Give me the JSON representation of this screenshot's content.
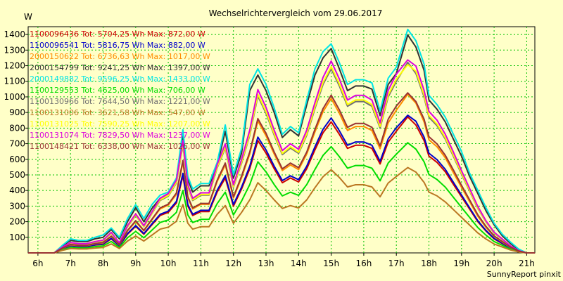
{
  "chart_data": {
    "type": "line",
    "title": "Wechselrichtervergleich vom 29.06.2017",
    "ylabel": "W",
    "xlabel": "",
    "footer": "SunnyReport pinxit",
    "ylim": [
      0,
      1450
    ],
    "xlim": [
      5.7,
      21.25
    ],
    "grid": true,
    "legend_position": "top-left",
    "y_ticks": [
      100,
      200,
      300,
      400,
      500,
      600,
      700,
      800,
      900,
      1000,
      1100,
      1200,
      1300,
      1400
    ],
    "x_ticks": [
      {
        "value": 6,
        "label": "6h"
      },
      {
        "value": 7,
        "label": "7h"
      },
      {
        "value": 8,
        "label": "8h"
      },
      {
        "value": 9,
        "label": "9h"
      },
      {
        "value": 10,
        "label": "10h"
      },
      {
        "value": 11,
        "label": "11h"
      },
      {
        "value": 12,
        "label": "12h"
      },
      {
        "value": 13,
        "label": "13h"
      },
      {
        "value": 14,
        "label": "14h"
      },
      {
        "value": 15,
        "label": "15h"
      },
      {
        "value": 16,
        "label": "16h"
      },
      {
        "value": 17,
        "label": "17h"
      },
      {
        "value": 18,
        "label": "18h"
      },
      {
        "value": 19,
        "label": "19h"
      },
      {
        "value": 20,
        "label": "20h"
      },
      {
        "value": 21,
        "label": "21h"
      }
    ],
    "x": [
      5.7,
      6.0,
      6.25,
      6.5,
      6.75,
      7.0,
      7.25,
      7.5,
      7.75,
      8.0,
      8.25,
      8.5,
      8.75,
      9.0,
      9.25,
      9.5,
      9.75,
      10.0,
      10.25,
      10.45,
      10.6,
      10.75,
      11.0,
      11.25,
      11.5,
      11.75,
      12.0,
      12.25,
      12.5,
      12.75,
      13.0,
      13.25,
      13.5,
      13.75,
      14.0,
      14.25,
      14.5,
      14.75,
      15.0,
      15.25,
      15.5,
      15.75,
      16.0,
      16.25,
      16.5,
      16.75,
      17.0,
      17.35,
      17.6,
      17.85,
      18.0,
      18.25,
      18.5,
      18.75,
      19.0,
      19.25,
      19.5,
      19.75,
      20.0,
      20.25,
      20.5,
      20.75,
      21.0,
      21.25
    ],
    "series": [
      {
        "name": "1100096436",
        "color": "#cc0000",
        "legend": "1100096436 Tot: 5704,25 Wh Max: 872,00 W",
        "values": [
          0,
          0,
          0,
          0,
          25,
          45,
          40,
          40,
          50,
          55,
          90,
          45,
          120,
          170,
          120,
          180,
          240,
          260,
          320,
          495,
          300,
          240,
          265,
          265,
          390,
          480,
          300,
          410,
          540,
          720,
          640,
          540,
          450,
          480,
          455,
          540,
          660,
          770,
          840,
          760,
          670,
          690,
          690,
          670,
          570,
          710,
          780,
          872,
          820,
          720,
          620,
          580,
          520,
          440,
          360,
          280,
          200,
          140,
          90,
          60,
          30,
          10,
          0,
          0
        ]
      },
      {
        "name": "1100096541",
        "color": "#0000cc",
        "legend": "1100096541 Tot: 5816,75 Wh Max: 882,00 W",
        "values": [
          0,
          0,
          0,
          0,
          27,
          47,
          42,
          42,
          52,
          58,
          93,
          47,
          124,
          175,
          124,
          186,
          247,
          268,
          330,
          510,
          310,
          248,
          273,
          273,
          402,
          495,
          310,
          422,
          556,
          742,
          660,
          556,
          464,
          494,
          469,
          556,
          680,
          793,
          865,
          783,
          690,
          711,
          711,
          690,
          587,
          731,
          803,
          882,
          844,
          742,
          639,
          597,
          536,
          453,
          371,
          288,
          206,
          144,
          93,
          62,
          31,
          10,
          0,
          0
        ]
      },
      {
        "name": "2000150622",
        "color": "#ff8c00",
        "legend": "2000150622 Tot: 6736,63 Wh Max: 1017,00 W",
        "values": [
          0,
          0,
          0,
          0,
          29,
          52,
          47,
          47,
          58,
          64,
          106,
          52,
          141,
          200,
          141,
          212,
          282,
          306,
          376,
          580,
          352,
          282,
          311,
          311,
          458,
          564,
          352,
          482,
          634,
          846,
          750,
          634,
          528,
          564,
          534,
          634,
          775,
          905,
          990,
          895,
          785,
          810,
          810,
          785,
          668,
          833,
          915,
          1017,
          960,
          840,
          725,
          680,
          610,
          515,
          420,
          328,
          235,
          164,
          106,
          70,
          35,
          12,
          0,
          0
        ]
      },
      {
        "name": "2000154799",
        "color": "#333333",
        "legend": "2000154799 Tot: 9241,25 Wh Max: 1397,00 W",
        "values": [
          0,
          0,
          0,
          0,
          45,
          80,
          72,
          72,
          90,
          100,
          150,
          90,
          200,
          290,
          200,
          285,
          350,
          380,
          460,
          750,
          470,
          390,
          430,
          430,
          560,
          780,
          480,
          640,
          1040,
          1140,
          1040,
          900,
          740,
          790,
          750,
          950,
          1140,
          1250,
          1310,
          1180,
          1040,
          1070,
          1070,
          1050,
          880,
          1080,
          1150,
          1397,
          1320,
          1170,
          980,
          920,
          840,
          730,
          620,
          490,
          380,
          270,
          180,
          110,
          60,
          20,
          0,
          0
        ]
      },
      {
        "name": "2000149882",
        "color": "#00e5e5",
        "legend": "2000149882 Tot: 9596,25 Wh Max: 1433,00 W",
        "values": [
          0,
          0,
          0,
          0,
          48,
          90,
          80,
          80,
          100,
          115,
          160,
          100,
          220,
          310,
          220,
          310,
          370,
          390,
          480,
          790,
          490,
          410,
          445,
          445,
          580,
          820,
          500,
          670,
          1080,
          1180,
          1080,
          930,
          760,
          810,
          770,
          980,
          1180,
          1290,
          1340,
          1220,
          1080,
          1110,
          1110,
          1090,
          910,
          1120,
          1190,
          1433,
          1360,
          1210,
          1010,
          950,
          870,
          760,
          650,
          510,
          400,
          290,
          190,
          120,
          70,
          25,
          0,
          0
        ]
      },
      {
        "name": "1100129553",
        "color": "#00dd00",
        "legend": "1100129553 Tot: 4625,00 Wh Max: 706,00 W",
        "values": [
          0,
          0,
          0,
          0,
          20,
          35,
          32,
          32,
          40,
          45,
          73,
          36,
          97,
          138,
          97,
          146,
          195,
          211,
          260,
          400,
          243,
          195,
          215,
          215,
          316,
          389,
          243,
          333,
          438,
          584,
          519,
          438,
          365,
          389,
          369,
          438,
          535,
          625,
          681,
          617,
          543,
          560,
          560,
          543,
          462,
          576,
          633,
          706,
          665,
          584,
          503,
          470,
          422,
          357,
          292,
          227,
          162,
          114,
          73,
          49,
          24,
          8,
          0,
          0
        ]
      },
      {
        "name": "1100130966",
        "color": "#707070",
        "legend": "1100130966 Tot: 7644,50 Wh Max: 1221,00 W",
        "values": [
          0,
          0,
          0,
          0,
          35,
          63,
          56,
          56,
          70,
          78,
          126,
          62,
          168,
          240,
          168,
          252,
          336,
          364,
          448,
          690,
          420,
          336,
          370,
          370,
          545,
          672,
          420,
          575,
          755,
          1005,
          895,
          755,
          630,
          672,
          638,
          755,
          925,
          1080,
          1180,
          1070,
          940,
          970,
          970,
          940,
          800,
          1000,
          1100,
          1221,
          1150,
          1000,
          870,
          815,
          730,
          620,
          505,
          395,
          285,
          198,
          127,
          85,
          43,
          14,
          0,
          0
        ]
      },
      {
        "name": "1100131006",
        "color": "#bb7722",
        "legend": "1100131006 Tot: 3621,58 Wh Max: 547,00 W",
        "values": [
          0,
          0,
          0,
          0,
          16,
          28,
          25,
          25,
          31,
          35,
          57,
          28,
          76,
          108,
          76,
          114,
          152,
          165,
          203,
          310,
          190,
          152,
          168,
          168,
          247,
          303,
          190,
          260,
          340,
          450,
          400,
          340,
          285,
          303,
          288,
          340,
          418,
          488,
          533,
          483,
          423,
          437,
          437,
          423,
          360,
          448,
          490,
          547,
          518,
          452,
          390,
          365,
          327,
          278,
          228,
          178,
          128,
          89,
          57,
          38,
          19,
          6,
          0,
          0
        ]
      },
      {
        "name": "1100131025",
        "color": "#ffff00",
        "legend": "1100131025 Tot: 7590,25 Wh Max: 1207,00 W",
        "values": [
          0,
          0,
          0,
          0,
          36,
          64,
          57,
          57,
          71,
          79,
          128,
          63,
          170,
          243,
          170,
          255,
          340,
          368,
          453,
          698,
          425,
          340,
          374,
          374,
          551,
          680,
          425,
          582,
          764,
          1017,
          906,
          764,
          637,
          680,
          645,
          764,
          936,
          1093,
          1194,
          1083,
          951,
          981,
          981,
          951,
          810,
          1012,
          1113,
          1207,
          1164,
          1012,
          881,
          825,
          739,
          628,
          511,
          400,
          288,
          200,
          129,
          86,
          44,
          14,
          0,
          0
        ]
      },
      {
        "name": "1100131074",
        "color": "#dd00dd",
        "legend": "1100131074 Tot: 7829,50 Wh Max: 1237,00 W",
        "values": [
          0,
          0,
          0,
          0,
          37,
          66,
          59,
          59,
          73,
          82,
          132,
          65,
          175,
          250,
          175,
          262,
          350,
          380,
          467,
          720,
          437,
          350,
          385,
          385,
          567,
          700,
          437,
          600,
          787,
          1047,
          933,
          787,
          656,
          700,
          664,
          787,
          963,
          1125,
          1230,
          1115,
          980,
          1010,
          1010,
          980,
          833,
          1042,
          1146,
          1237,
          1198,
          1042,
          907,
          850,
          761,
          647,
          527,
          412,
          297,
          206,
          133,
          89,
          45,
          15,
          0,
          0
        ]
      },
      {
        "name": "1100148421",
        "color": "#993333",
        "legend": "1100148421 Tot: 6338,00 Wh Max: 1026,00 W",
        "values": [
          0,
          0,
          0,
          0,
          30,
          54,
          48,
          48,
          60,
          67,
          108,
          53,
          144,
          206,
          144,
          216,
          288,
          312,
          384,
          592,
          360,
          288,
          317,
          317,
          466,
          576,
          360,
          493,
          647,
          861,
          767,
          647,
          539,
          576,
          546,
          647,
          792,
          925,
          1011,
          917,
          805,
          830,
          830,
          805,
          686,
          857,
          942,
          1026,
          970,
          857,
          745,
          698,
          626,
          532,
          433,
          339,
          244,
          170,
          109,
          73,
          37,
          12,
          0,
          0
        ]
      }
    ]
  }
}
